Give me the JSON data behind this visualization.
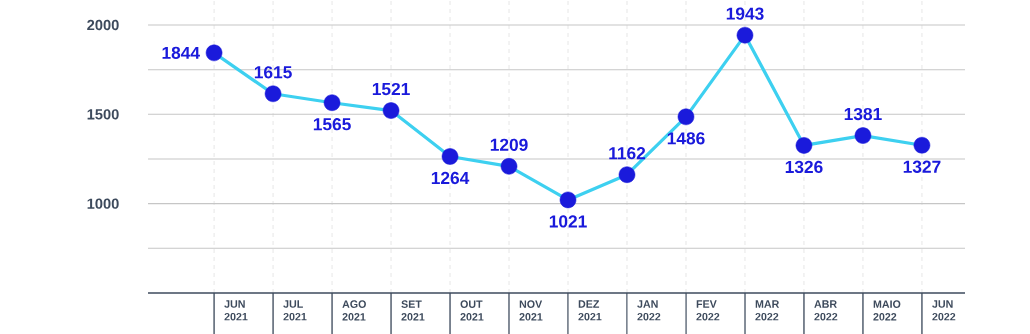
{
  "chart_data": {
    "type": "line",
    "categories": [
      "JUN 2021",
      "JUL 2021",
      "AGO 2021",
      "SET 2021",
      "OUT 2021",
      "NOV 2021",
      "DEZ 2021",
      "JAN 2022",
      "FEV 2022",
      "MAR 2022",
      "ABR 2022",
      "MAIO 2022",
      "JUN 2022"
    ],
    "values": [
      1844,
      1615,
      1565,
      1521,
      1264,
      1209,
      1021,
      1162,
      1486,
      1943,
      1326,
      1381,
      1327
    ],
    "color": "#3dd0f0",
    "colors": [
      "#1a1adb",
      "#1a1adb",
      "#1a1adb",
      "#1a1adb",
      "#1a1adb",
      "#1a1adb",
      "#1a1adb",
      "#1a1adb",
      "#1a1adb",
      "#1a1adb",
      "#1a1adb",
      "#1a1adb",
      "#1a1adb"
    ],
    "ylim": [
      500,
      2140
    ],
    "yticks": [
      {
        "value": 750,
        "label": null
      },
      1000,
      {
        "value": 1250,
        "label": null
      },
      1500,
      {
        "value": 1750,
        "label": null
      },
      2000
    ],
    "grid": true,
    "marker": "circle",
    "line_style": "solid",
    "data_labels": true
  }
}
